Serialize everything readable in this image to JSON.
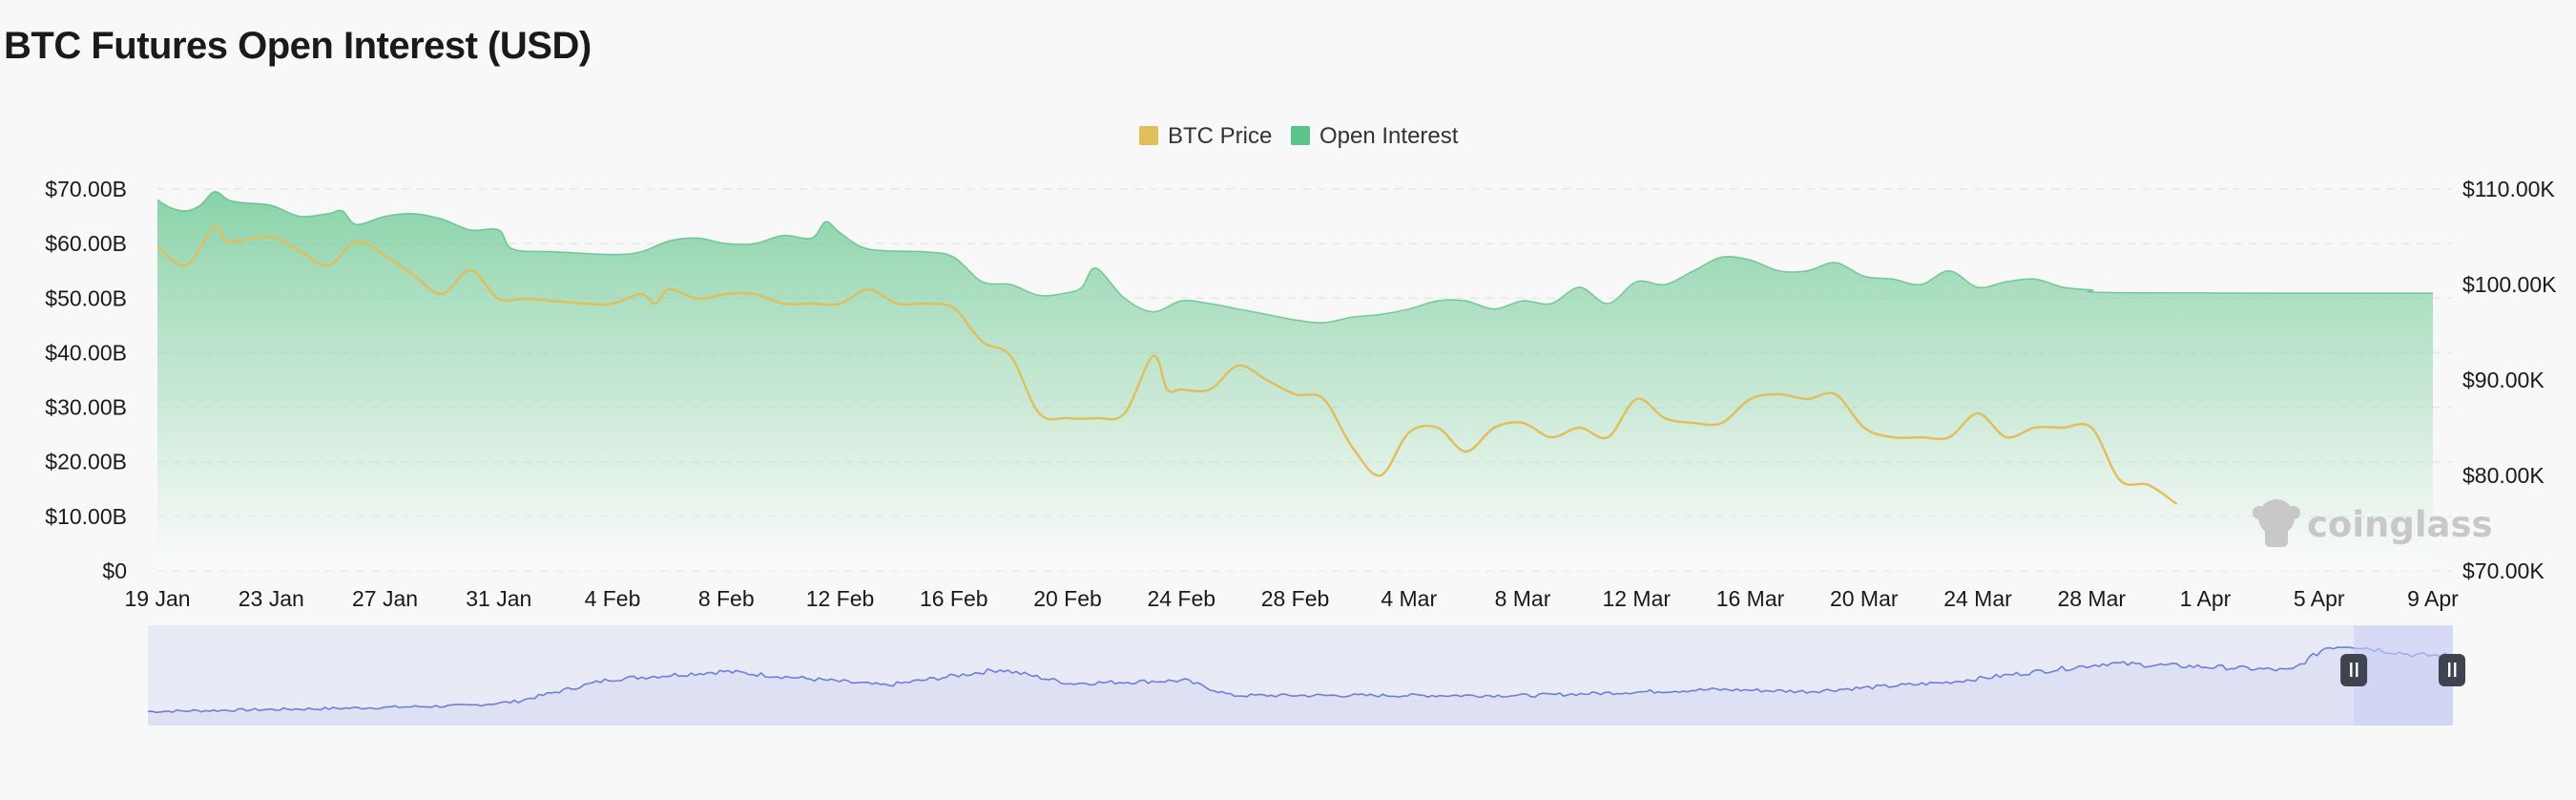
{
  "title": "BTC Futures Open Interest (USD)",
  "watermark": "coinglass",
  "chart_data": {
    "type": "area",
    "title": "BTC Futures Open Interest (USD)",
    "legend": {
      "placement": "top-center",
      "items": [
        {
          "name": "BTC Price",
          "color": "#e2bd5b",
          "marker": "square"
        },
        {
          "name": "Open Interest",
          "color": "#5cc489",
          "marker": "square"
        }
      ]
    },
    "x_ticks": [
      "19 Jan",
      "23 Jan",
      "27 Jan",
      "31 Jan",
      "4 Feb",
      "8 Feb",
      "12 Feb",
      "16 Feb",
      "20 Feb",
      "24 Feb",
      "28 Feb",
      "4 Mar",
      "8 Mar",
      "12 Mar",
      "16 Mar",
      "20 Mar",
      "24 Mar",
      "28 Mar",
      "1 Apr",
      "5 Apr",
      "9 Apr"
    ],
    "y_left": {
      "ticks": [
        "$0",
        "$10.00B",
        "$20.00B",
        "$30.00B",
        "$40.00B",
        "$50.00B",
        "$60.00B",
        "$70.00B"
      ],
      "range": [
        0,
        70
      ],
      "unit": "B USD"
    },
    "y_right": {
      "ticks": [
        "$70.00K",
        "$80.00K",
        "$90.00K",
        "$100.00K",
        "$110.00K"
      ],
      "range": [
        70,
        110
      ],
      "unit": "K USD"
    },
    "grid": {
      "horizontal": true,
      "style": "dashed"
    },
    "series": [
      {
        "name": "Open Interest",
        "axis": "left",
        "color": "#5cc489",
        "style": "area",
        "points": [
          [
            0,
            68
          ],
          [
            0.5,
            66.5
          ],
          [
            1,
            66
          ],
          [
            1.5,
            67
          ],
          [
            2,
            69.5
          ],
          [
            2.5,
            68
          ],
          [
            3,
            67.5
          ],
          [
            4,
            67
          ],
          [
            5,
            65
          ],
          [
            6,
            65.5
          ],
          [
            6.5,
            66
          ],
          [
            7,
            63.5
          ],
          [
            8,
            65
          ],
          [
            9,
            65.5
          ],
          [
            10,
            64.5
          ],
          [
            11,
            62.5
          ],
          [
            12,
            62.5
          ],
          [
            12.5,
            59
          ],
          [
            14,
            58.5
          ],
          [
            16,
            58
          ],
          [
            17,
            58.5
          ],
          [
            18,
            60.5
          ],
          [
            19,
            61
          ],
          [
            20,
            60
          ],
          [
            21,
            60
          ],
          [
            22,
            61.5
          ],
          [
            23,
            61
          ],
          [
            23.5,
            64
          ],
          [
            24,
            62
          ],
          [
            25,
            59
          ],
          [
            27,
            58.5
          ],
          [
            28,
            57.5
          ],
          [
            29,
            53
          ],
          [
            30,
            52.5
          ],
          [
            31,
            50.5
          ],
          [
            32,
            51
          ],
          [
            32.5,
            52
          ],
          [
            33,
            55.5
          ],
          [
            34,
            50
          ],
          [
            35,
            47.5
          ],
          [
            36,
            49.5
          ],
          [
            37,
            49
          ],
          [
            38,
            48
          ],
          [
            39,
            47
          ],
          [
            40,
            46
          ],
          [
            41,
            45.5
          ],
          [
            42,
            46.5
          ],
          [
            43,
            47
          ],
          [
            44,
            48
          ],
          [
            45,
            49.5
          ],
          [
            46,
            49.5
          ],
          [
            47,
            48
          ],
          [
            48,
            49.5
          ],
          [
            49,
            49
          ],
          [
            50,
            52
          ],
          [
            51,
            49
          ],
          [
            52,
            53
          ],
          [
            53,
            52.5
          ],
          [
            54,
            55
          ],
          [
            55,
            57.5
          ],
          [
            56,
            57
          ],
          [
            57,
            55
          ],
          [
            58,
            55
          ],
          [
            59,
            56.5
          ],
          [
            60,
            54
          ],
          [
            61,
            53.5
          ],
          [
            62,
            52.5
          ],
          [
            63,
            55
          ],
          [
            64,
            52
          ],
          [
            65,
            53
          ],
          [
            66,
            53.5
          ],
          [
            67,
            52
          ],
          [
            68,
            51.5
          ],
          [
            69,
            51
          ],
          [
            80,
            50.9
          ]
        ]
      },
      {
        "name": "BTC Price",
        "axis": "right",
        "color": "#e2bd5b",
        "style": "line",
        "points": [
          [
            0,
            104
          ],
          [
            1,
            102
          ],
          [
            2,
            106
          ],
          [
            2.5,
            104.5
          ],
          [
            4,
            105
          ],
          [
            5,
            103.5
          ],
          [
            6,
            102
          ],
          [
            7,
            104.5
          ],
          [
            8,
            103
          ],
          [
            9,
            101
          ],
          [
            10,
            99
          ],
          [
            11,
            101.5
          ],
          [
            12,
            98.5
          ],
          [
            13,
            98.5
          ],
          [
            15,
            98
          ],
          [
            16,
            98
          ],
          [
            17,
            99
          ],
          [
            17.5,
            98
          ],
          [
            18,
            99.5
          ],
          [
            19,
            98.5
          ],
          [
            20,
            99
          ],
          [
            21,
            99
          ],
          [
            22,
            98
          ],
          [
            23,
            98
          ],
          [
            24,
            98
          ],
          [
            25,
            99.5
          ],
          [
            26,
            98
          ],
          [
            27,
            98
          ],
          [
            28,
            97.5
          ],
          [
            29,
            94
          ],
          [
            30,
            92.5
          ],
          [
            31,
            86.5
          ],
          [
            32,
            86
          ],
          [
            33,
            86
          ],
          [
            34,
            86.5
          ],
          [
            35,
            92.5
          ],
          [
            35.5,
            89
          ],
          [
            36,
            89
          ],
          [
            37,
            89
          ],
          [
            38,
            91.5
          ],
          [
            39,
            90
          ],
          [
            40,
            88.5
          ],
          [
            41,
            88
          ],
          [
            42,
            83
          ],
          [
            43,
            80
          ],
          [
            44,
            84.5
          ],
          [
            45,
            85
          ],
          [
            46,
            82.5
          ],
          [
            47,
            85
          ],
          [
            48,
            85.5
          ],
          [
            49,
            84
          ],
          [
            50,
            85
          ],
          [
            51,
            84
          ],
          [
            52,
            88
          ],
          [
            53,
            86
          ],
          [
            54,
            85.5
          ],
          [
            55,
            85.5
          ],
          [
            56,
            88
          ],
          [
            57,
            88.5
          ],
          [
            58,
            88
          ],
          [
            59,
            88.5
          ],
          [
            60,
            85
          ],
          [
            61,
            84
          ],
          [
            62,
            84
          ],
          [
            63,
            84
          ],
          [
            64,
            86.5
          ],
          [
            65,
            84
          ],
          [
            66,
            85
          ],
          [
            67,
            85
          ],
          [
            68,
            85
          ],
          [
            69,
            79.5
          ],
          [
            70,
            79
          ],
          [
            71,
            77
          ]
        ]
      }
    ],
    "navigator": {
      "selection_start_fraction": 0.957,
      "selection_end_fraction": 1.0
    }
  }
}
